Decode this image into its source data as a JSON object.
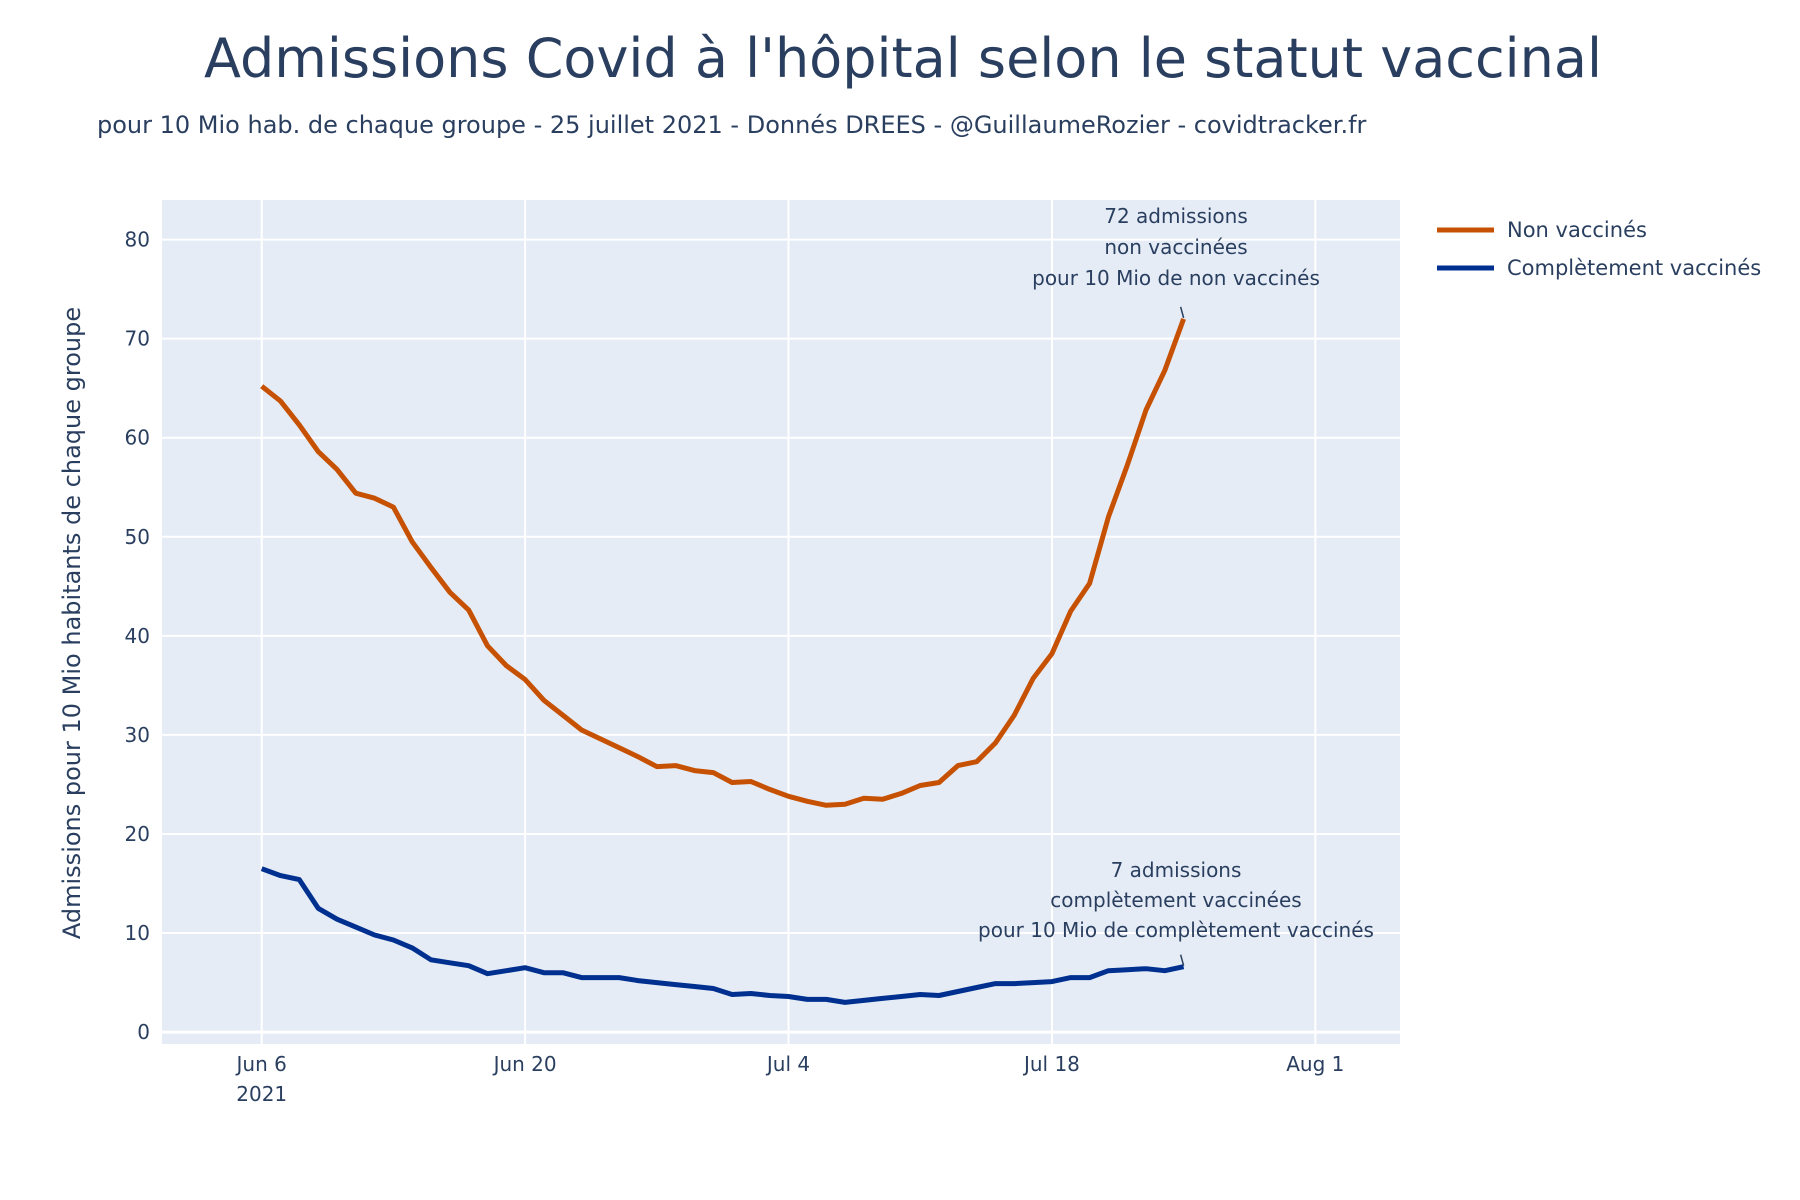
{
  "chart_data": {
    "type": "line",
    "title": "Admissions Covid à l'hôpital selon le statut vaccinal",
    "subtitle": "pour 10 Mio hab. de chaque groupe - 25 juillet 2021 - Donnés DREES - @GuillaumeRozier - covidtracker.fr",
    "xlabel": "",
    "ylabel": "Admissions pour 10 Mio habitants de chaque groupe",
    "x_start": "2021-06-06",
    "x_step_days": 1,
    "xlim_days_from_start": [
      -5.3,
      60.5
    ],
    "ylim": [
      -1.2,
      84
    ],
    "x_ticks": [
      {
        "day": 0,
        "label": "Jun 6",
        "sublabel": "2021"
      },
      {
        "day": 14,
        "label": "Jun 20"
      },
      {
        "day": 28,
        "label": "Jul 4"
      },
      {
        "day": 42,
        "label": "Jul 18"
      },
      {
        "day": 56,
        "label": "Aug 1"
      }
    ],
    "y_ticks": [
      0,
      10,
      20,
      30,
      40,
      50,
      60,
      70,
      80
    ],
    "grid": true,
    "legend_position": "right",
    "series": [
      {
        "name": "Non vaccinés",
        "color": "#c65102",
        "values": [
          65.2,
          63.7,
          61.3,
          58.6,
          56.8,
          54.4,
          53.9,
          53.0,
          49.5,
          46.9,
          44.4,
          42.6,
          39.0,
          37.0,
          35.6,
          33.5,
          32.0,
          30.5,
          29.6,
          28.7,
          27.8,
          26.8,
          26.9,
          26.4,
          26.2,
          25.2,
          25.3,
          24.5,
          23.8,
          23.3,
          22.9,
          23.0,
          23.6,
          23.5,
          24.1,
          24.9,
          25.2,
          26.9,
          27.3,
          29.2,
          32.0,
          35.7,
          38.2,
          42.5,
          45.3,
          52.0,
          57.2,
          62.8,
          66.8,
          72.0
        ]
      },
      {
        "name": "Complètement vaccinés",
        "color": "#00308f",
        "values": [
          16.5,
          15.8,
          15.4,
          12.5,
          11.4,
          10.6,
          9.8,
          9.3,
          8.5,
          7.3,
          7.0,
          6.7,
          5.9,
          6.2,
          6.5,
          6.0,
          6.0,
          5.5,
          5.5,
          5.5,
          5.2,
          5.0,
          4.8,
          4.6,
          4.4,
          3.8,
          3.9,
          3.7,
          3.6,
          3.3,
          3.3,
          3.0,
          3.2,
          3.4,
          3.6,
          3.8,
          3.7,
          4.1,
          4.5,
          4.9,
          4.9,
          5.0,
          5.1,
          5.5,
          5.5,
          6.2,
          6.3,
          6.4,
          6.2,
          6.6
        ]
      }
    ],
    "annotations": [
      {
        "series": 0,
        "lines": [
          "72 admissions",
          "non vaccinées",
          "pour 10 Mio de non vaccinés"
        ]
      },
      {
        "series": 1,
        "lines": [
          "7 admissions",
          "complètement vaccinées",
          "pour 10 Mio de complètement vaccinés"
        ]
      }
    ]
  }
}
